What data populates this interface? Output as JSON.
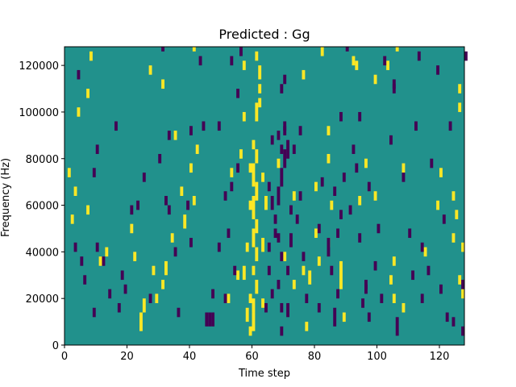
{
  "chart_data": {
    "type": "heatmap",
    "title": "Predicted : Gg",
    "xlabel": "Time step",
    "ylabel": "Frequency (Hz)",
    "xlim": [
      0,
      128
    ],
    "ylim": [
      0,
      128000
    ],
    "x_ticks": [
      0,
      20,
      40,
      60,
      80,
      100,
      120
    ],
    "y_ticks": [
      0,
      20000,
      40000,
      60000,
      80000,
      100000,
      120000
    ],
    "x_tick_labels": [
      "0",
      "20",
      "40",
      "60",
      "80",
      "100",
      "120"
    ],
    "y_tick_labels": [
      "0",
      "20000",
      "40000",
      "60000",
      "80000",
      "100000",
      "120000"
    ],
    "colormap": "viridis",
    "background_value": 0,
    "color_map": {
      "-1": "#440154",
      "0": "#21918c",
      "1": "#fde725"
    },
    "grid": false,
    "value_levels": [
      -1,
      0,
      1
    ],
    "band_hz": 2000,
    "band_hz_span": 2000,
    "cells_yellow": [
      [
        60,
        6000,
        4
      ],
      [
        60,
        14000,
        3
      ],
      [
        61,
        22000,
        3
      ],
      [
        60,
        30000,
        2
      ],
      [
        61,
        36000,
        3
      ],
      [
        60,
        42000,
        4
      ],
      [
        61,
        48000,
        3
      ],
      [
        60,
        54000,
        5
      ],
      [
        61,
        62000,
        4
      ],
      [
        60,
        68000,
        5
      ],
      [
        61,
        78000,
        3
      ],
      [
        60,
        84000,
        2
      ],
      [
        61,
        96000,
        4
      ],
      [
        62,
        108000,
        2
      ],
      [
        62,
        114000,
        3
      ],
      [
        61,
        122000,
        2
      ],
      [
        59,
        4000,
        2
      ],
      [
        58,
        10000,
        3
      ],
      [
        59,
        18000,
        2
      ],
      [
        57,
        28000,
        3
      ],
      [
        58,
        40000,
        2
      ],
      [
        59,
        58000,
        2
      ],
      [
        59,
        74000,
        2
      ],
      [
        63,
        16000,
        2
      ],
      [
        63,
        40000,
        3
      ],
      [
        64,
        58000,
        3
      ],
      [
        63,
        70000,
        2
      ],
      [
        24,
        6000,
        4
      ],
      [
        25,
        14000,
        3
      ],
      [
        32,
        30000,
        3
      ],
      [
        34,
        44000,
        2
      ],
      [
        38,
        50000,
        3
      ],
      [
        41,
        60000,
        2
      ],
      [
        37,
        64000,
        2
      ],
      [
        40,
        74000,
        2
      ],
      [
        42,
        82000,
        2
      ],
      [
        31,
        24000,
        2
      ],
      [
        29,
        18000,
        2
      ],
      [
        28,
        30000,
        2
      ],
      [
        22,
        36000,
        2
      ],
      [
        21,
        48000,
        2
      ],
      [
        11,
        34000,
        2
      ],
      [
        13,
        38000,
        2
      ],
      [
        7,
        56000,
        2
      ],
      [
        2,
        52000,
        2
      ],
      [
        1,
        72000,
        2
      ],
      [
        3,
        64000,
        2
      ],
      [
        4,
        98000,
        2
      ],
      [
        7,
        106000,
        2
      ],
      [
        8,
        122000,
        2
      ],
      [
        27,
        116000,
        2
      ],
      [
        31,
        110000,
        2
      ],
      [
        35,
        88000,
        2
      ],
      [
        41,
        126000,
        2
      ],
      [
        52,
        18000,
        2
      ],
      [
        55,
        28000,
        2
      ],
      [
        53,
        72000,
        2
      ],
      [
        56,
        80000,
        2
      ],
      [
        57,
        96000,
        2
      ],
      [
        57,
        118000,
        2
      ],
      [
        73,
        62000,
        2
      ],
      [
        76,
        30000,
        2
      ],
      [
        77,
        6000,
        2
      ],
      [
        78,
        26000,
        3
      ],
      [
        80,
        46000,
        2
      ],
      [
        80,
        66000,
        2
      ],
      [
        81,
        34000,
        2
      ],
      [
        84,
        42000,
        2
      ],
      [
        85,
        58000,
        2
      ],
      [
        88,
        24000,
        4
      ],
      [
        88,
        32000,
        2
      ],
      [
        84,
        78000,
        2
      ],
      [
        84,
        90000,
        2
      ],
      [
        89,
        10000,
        2
      ],
      [
        94,
        60000,
        2
      ],
      [
        96,
        76000,
        2
      ],
      [
        99,
        62000,
        2
      ],
      [
        99,
        112000,
        2
      ],
      [
        103,
        118000,
        2
      ],
      [
        105,
        34000,
        2
      ],
      [
        105,
        18000,
        2
      ],
      [
        106,
        126000,
        2
      ],
      [
        108,
        74000,
        2
      ],
      [
        115,
        38000,
        2
      ],
      [
        119,
        58000,
        2
      ],
      [
        120,
        72000,
        2
      ],
      [
        124,
        44000,
        2
      ],
      [
        127,
        20000,
        2
      ],
      [
        126,
        26000,
        2
      ],
      [
        126,
        100000,
        2
      ],
      [
        126,
        108000,
        2
      ],
      [
        127,
        40000,
        2
      ],
      [
        125,
        54000,
        2
      ],
      [
        124,
        62000,
        2
      ],
      [
        93,
        118000,
        2
      ],
      [
        104,
        26000,
        2
      ],
      [
        108,
        14000,
        2
      ],
      [
        68,
        76000,
        2
      ],
      [
        70,
        36000,
        2
      ],
      [
        73,
        24000,
        2
      ],
      [
        76,
        114000,
        2
      ],
      [
        82,
        124000,
        2
      ],
      [
        92,
        120000,
        2
      ],
      [
        62,
        102000,
        2
      ]
    ],
    "cells_purple": [
      [
        69,
        4000,
        2
      ],
      [
        69,
        14000,
        2
      ],
      [
        68,
        24000,
        2
      ],
      [
        69,
        36000,
        2
      ],
      [
        68,
        44000,
        2
      ],
      [
        67,
        52000,
        2
      ],
      [
        68,
        60000,
        4
      ],
      [
        69,
        68000,
        4
      ],
      [
        70,
        76000,
        4
      ],
      [
        69,
        82000,
        2
      ],
      [
        71,
        80000,
        4
      ],
      [
        68,
        88000,
        2
      ],
      [
        67,
        46000,
        2
      ],
      [
        66,
        58000,
        3
      ],
      [
        71,
        12000,
        3
      ],
      [
        71,
        30000,
        2
      ],
      [
        72,
        42000,
        3
      ],
      [
        72,
        56000,
        2
      ],
      [
        70,
        90000,
        2
      ],
      [
        69,
        108000,
        2
      ],
      [
        70,
        92000,
        2
      ],
      [
        65,
        30000,
        2
      ],
      [
        65,
        66000,
        2
      ],
      [
        65,
        40000,
        2
      ],
      [
        66,
        20000,
        2
      ],
      [
        66,
        86000,
        2
      ],
      [
        64,
        14000,
        2
      ],
      [
        45,
        8000,
        3
      ],
      [
        46,
        8000,
        3
      ],
      [
        47,
        8000,
        3
      ],
      [
        47,
        20000,
        2
      ],
      [
        51,
        18000,
        2
      ],
      [
        49,
        40000,
        2
      ],
      [
        51,
        62000,
        2
      ],
      [
        52,
        46000,
        2
      ],
      [
        53,
        66000,
        2
      ],
      [
        55,
        74000,
        2
      ],
      [
        54,
        30000,
        2
      ],
      [
        49,
        92000,
        2
      ],
      [
        44,
        92000,
        2
      ],
      [
        40,
        90000,
        2
      ],
      [
        36,
        12000,
        2
      ],
      [
        40,
        42000,
        2
      ],
      [
        39,
        58000,
        2
      ],
      [
        35,
        38000,
        2
      ],
      [
        32,
        60000,
        2
      ],
      [
        30,
        78000,
        2
      ],
      [
        25,
        70000,
        2
      ],
      [
        23,
        58000,
        2
      ],
      [
        21,
        56000,
        2
      ],
      [
        19,
        22000,
        2
      ],
      [
        18,
        28000,
        2
      ],
      [
        17,
        14000,
        2
      ],
      [
        14,
        20000,
        2
      ],
      [
        12,
        34000,
        2
      ],
      [
        10,
        40000,
        2
      ],
      [
        5,
        34000,
        2
      ],
      [
        6,
        26000,
        2
      ],
      [
        9,
        12000,
        2
      ],
      [
        3,
        40000,
        2
      ],
      [
        10,
        82000,
        2
      ],
      [
        9,
        72000,
        2
      ],
      [
        4,
        114000,
        2
      ],
      [
        16,
        92000,
        2
      ],
      [
        31,
        126000,
        2
      ],
      [
        43,
        120000,
        2
      ],
      [
        53,
        120000,
        2
      ],
      [
        55,
        106000,
        2
      ],
      [
        56,
        124000,
        2
      ],
      [
        70,
        112000,
        2
      ],
      [
        75,
        90000,
        2
      ],
      [
        73,
        82000,
        2
      ],
      [
        75,
        62000,
        2
      ],
      [
        74,
        52000,
        2
      ],
      [
        76,
        36000,
        2
      ],
      [
        77,
        18000,
        2
      ],
      [
        81,
        14000,
        2
      ],
      [
        82,
        68000,
        2
      ],
      [
        81,
        48000,
        2
      ],
      [
        84,
        38000,
        4
      ],
      [
        85,
        30000,
        2
      ],
      [
        86,
        8000,
        4
      ],
      [
        87,
        20000,
        2
      ],
      [
        87,
        46000,
        2
      ],
      [
        88,
        54000,
        2
      ],
      [
        86,
        64000,
        2
      ],
      [
        89,
        70000,
        2
      ],
      [
        88,
        96000,
        2
      ],
      [
        93,
        74000,
        2
      ],
      [
        91,
        56000,
        2
      ],
      [
        92,
        82000,
        2
      ],
      [
        94,
        44000,
        2
      ],
      [
        95,
        16000,
        2
      ],
      [
        96,
        24000,
        2
      ],
      [
        97,
        10000,
        2
      ],
      [
        97,
        66000,
        2
      ],
      [
        99,
        32000,
        2
      ],
      [
        100,
        48000,
        2
      ],
      [
        101,
        18000,
        2
      ],
      [
        104,
        86000,
        2
      ],
      [
        105,
        110000,
        2
      ],
      [
        106,
        4000,
        4
      ],
      [
        108,
        70000,
        2
      ],
      [
        110,
        46000,
        2
      ],
      [
        111,
        28000,
        2
      ],
      [
        112,
        92000,
        2
      ],
      [
        114,
        18000,
        2
      ],
      [
        114,
        40000,
        2
      ],
      [
        116,
        30000,
        2
      ],
      [
        117,
        76000,
        2
      ],
      [
        119,
        116000,
        2
      ],
      [
        120,
        22000,
        2
      ],
      [
        121,
        52000,
        2
      ],
      [
        122,
        10000,
        2
      ],
      [
        123,
        92000,
        2
      ],
      [
        124,
        8000,
        2
      ],
      [
        127,
        4000,
        2
      ],
      [
        128,
        122000,
        2
      ],
      [
        127,
        24000,
        2
      ],
      [
        113,
        122000,
        2
      ],
      [
        102,
        120000,
        2
      ],
      [
        94,
        96000,
        2
      ],
      [
        90,
        126000,
        2
      ],
      [
        96,
        22000,
        2
      ],
      [
        105,
        108000,
        2
      ],
      [
        33,
        88000,
        2
      ],
      [
        27,
        18000,
        2
      ],
      [
        33,
        56000,
        2
      ]
    ]
  }
}
